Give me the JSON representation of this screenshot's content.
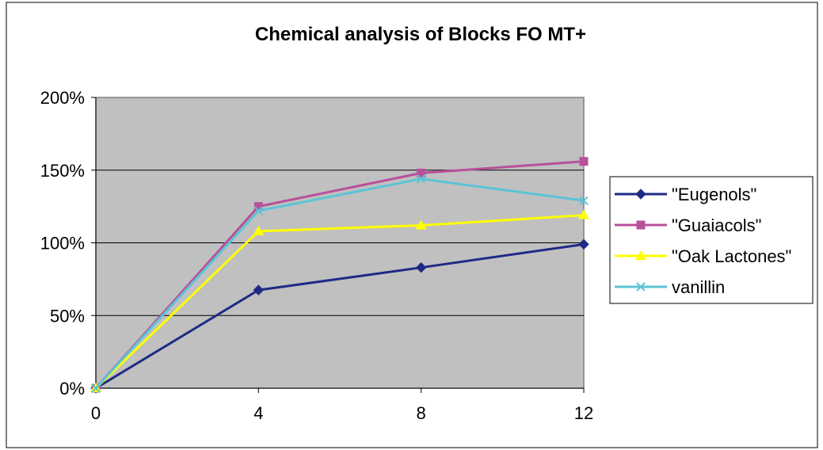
{
  "chart_data": {
    "type": "line",
    "title": "Chemical analysis of Blocks FO MT+",
    "xlabel": "",
    "ylabel": "",
    "x": [
      0,
      4,
      8,
      12
    ],
    "x_tick_labels": [
      "0",
      "4",
      "8",
      "12"
    ],
    "ylim": [
      0,
      2
    ],
    "y_ticks": [
      0,
      0.5,
      1,
      1.5,
      2
    ],
    "y_tick_labels": [
      "0%",
      "50%",
      "100%",
      "150%",
      "200%"
    ],
    "grid": true,
    "legend_position": "right",
    "plot_background": "#c0c0c0",
    "series": [
      {
        "name": "\"Eugenols\"",
        "values": [
          0,
          0.675,
          0.83,
          0.99
        ],
        "color": "#1f2a86",
        "marker": "diamond"
      },
      {
        "name": "\"Guaiacols\"",
        "values": [
          0,
          1.25,
          1.48,
          1.56
        ],
        "color": "#b8509a",
        "marker": "square"
      },
      {
        "name": "\"Oak Lactones\"",
        "values": [
          0,
          1.08,
          1.12,
          1.19
        ],
        "color": "#ffff00",
        "marker": "triangle"
      },
      {
        "name": "vanillin",
        "values": [
          0,
          1.22,
          1.44,
          1.29
        ],
        "color": "#5bc4d6",
        "marker": "x"
      }
    ]
  }
}
